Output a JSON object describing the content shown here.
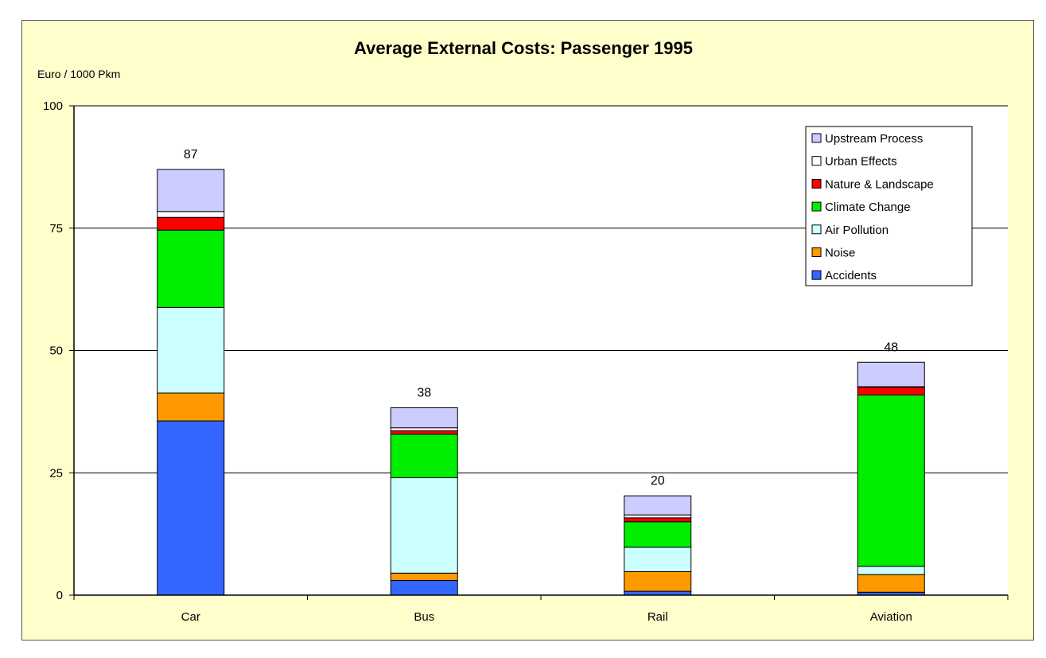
{
  "chart_data": {
    "type": "bar",
    "stacked": true,
    "title": "Average External Costs: Passenger  1995",
    "ylabel": "Euro / 1000  Pkm",
    "xlabel": "",
    "ylim": [
      0,
      100
    ],
    "yticks": [
      "0",
      "25",
      "50",
      "75",
      "100"
    ],
    "grid": true,
    "legend_position": "top-right",
    "categories": [
      "Car",
      "Bus",
      "Rail",
      "Aviation"
    ],
    "totals": [
      "87",
      "38",
      "20",
      "48"
    ],
    "series": [
      {
        "name": "Accidents",
        "color": "#3366ff",
        "values": [
          35.6,
          3.0,
          0.8,
          0.6
        ]
      },
      {
        "name": "Noise",
        "color": "#ff9900",
        "values": [
          5.7,
          1.5,
          4.0,
          3.6
        ]
      },
      {
        "name": "Air Pollution",
        "color": "#ccffff",
        "values": [
          17.5,
          19.5,
          5.0,
          1.7
        ]
      },
      {
        "name": "Climate Change",
        "color": "#00ee00",
        "values": [
          15.8,
          8.9,
          5.2,
          35.0
        ]
      },
      {
        "name": "Nature & Landscape",
        "color": "#ff0000",
        "values": [
          2.6,
          0.7,
          0.8,
          1.6
        ]
      },
      {
        "name": "Urban Effects",
        "color": "#ffffff",
        "values": [
          1.2,
          0.6,
          0.6,
          0.1
        ]
      },
      {
        "name": "Upstream Process",
        "color": "#ccccff",
        "values": [
          8.6,
          4.1,
          3.9,
          5.0
        ]
      }
    ]
  }
}
